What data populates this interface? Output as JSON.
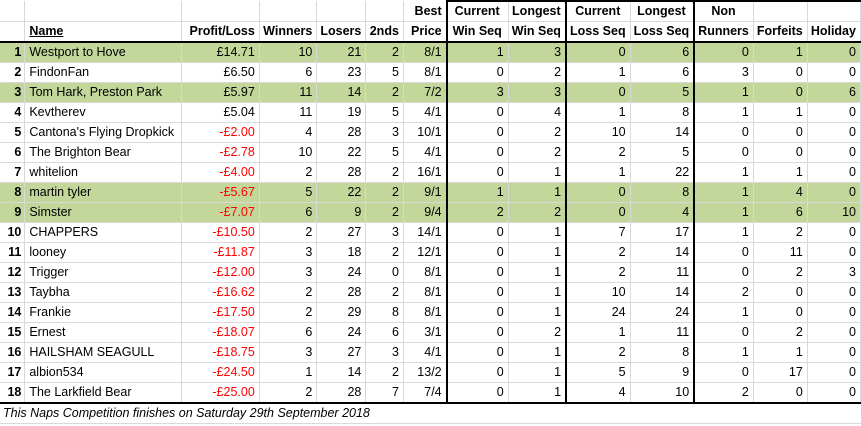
{
  "headers": {
    "name": "Name",
    "profit": "Profit/Loss",
    "winners": "Winners",
    "losers": "Losers",
    "seconds": "2nds",
    "best_price_top": "Best",
    "best_price_bottom": "Price",
    "cur_win_top": "Current",
    "cur_win_bottom": "Win Seq",
    "long_win_top": "Longest",
    "long_win_bottom": "Win Seq",
    "cur_loss_top": "Current",
    "cur_loss_bottom": "Loss Seq",
    "long_loss_top": "Longest",
    "long_loss_bottom": "Loss Seq",
    "non_runners_top": "Non",
    "non_runners_bottom": "Runners",
    "forfeits": "Forfeits",
    "holiday": "Holiday"
  },
  "colors": {
    "highlight": "#c4d79b",
    "negative": "#ff0000",
    "gridline": "#d9d9d9"
  },
  "rows": [
    {
      "rank": "1",
      "name": "Westport to Hove",
      "profit": "£14.71",
      "winners": "10",
      "losers": "21",
      "seconds": "2",
      "best_price": "8/1",
      "cur_win": "1",
      "long_win": "3",
      "cur_loss": "0",
      "long_loss": "6",
      "non_runners": "0",
      "forfeits": "1",
      "holiday": "0",
      "highlight": true,
      "negative": false
    },
    {
      "rank": "2",
      "name": "FindonFan",
      "profit": "£6.50",
      "winners": "6",
      "losers": "23",
      "seconds": "5",
      "best_price": "8/1",
      "cur_win": "0",
      "long_win": "2",
      "cur_loss": "1",
      "long_loss": "6",
      "non_runners": "3",
      "forfeits": "0",
      "holiday": "0",
      "highlight": false,
      "negative": false
    },
    {
      "rank": "3",
      "name": "Tom Hark, Preston Park",
      "profit": "£5.97",
      "winners": "11",
      "losers": "14",
      "seconds": "2",
      "best_price": "7/2",
      "cur_win": "3",
      "long_win": "3",
      "cur_loss": "0",
      "long_loss": "5",
      "non_runners": "1",
      "forfeits": "0",
      "holiday": "6",
      "highlight": true,
      "negative": false
    },
    {
      "rank": "4",
      "name": "Kevtherev",
      "profit": "£5.04",
      "winners": "11",
      "losers": "19",
      "seconds": "5",
      "best_price": "4/1",
      "cur_win": "0",
      "long_win": "4",
      "cur_loss": "1",
      "long_loss": "8",
      "non_runners": "1",
      "forfeits": "1",
      "holiday": "0",
      "highlight": false,
      "negative": false
    },
    {
      "rank": "5",
      "name": "Cantona's Flying Dropkick",
      "profit": "-£2.00",
      "winners": "4",
      "losers": "28",
      "seconds": "3",
      "best_price": "10/1",
      "cur_win": "0",
      "long_win": "2",
      "cur_loss": "10",
      "long_loss": "14",
      "non_runners": "0",
      "forfeits": "0",
      "holiday": "0",
      "highlight": false,
      "negative": true
    },
    {
      "rank": "6",
      "name": "The Brighton Bear",
      "profit": "-£2.78",
      "winners": "10",
      "losers": "22",
      "seconds": "5",
      "best_price": "4/1",
      "cur_win": "0",
      "long_win": "2",
      "cur_loss": "2",
      "long_loss": "5",
      "non_runners": "0",
      "forfeits": "0",
      "holiday": "0",
      "highlight": false,
      "negative": true
    },
    {
      "rank": "7",
      "name": "whitelion",
      "profit": "-£4.00",
      "winners": "2",
      "losers": "28",
      "seconds": "2",
      "best_price": "16/1",
      "cur_win": "0",
      "long_win": "1",
      "cur_loss": "1",
      "long_loss": "22",
      "non_runners": "1",
      "forfeits": "1",
      "holiday": "0",
      "highlight": false,
      "negative": true
    },
    {
      "rank": "8",
      "name": "martin tyler",
      "profit": "-£5.67",
      "winners": "5",
      "losers": "22",
      "seconds": "2",
      "best_price": "9/1",
      "cur_win": "1",
      "long_win": "1",
      "cur_loss": "0",
      "long_loss": "8",
      "non_runners": "1",
      "forfeits": "4",
      "holiday": "0",
      "highlight": true,
      "negative": true
    },
    {
      "rank": "9",
      "name": "Simster",
      "profit": "-£7.07",
      "winners": "6",
      "losers": "9",
      "seconds": "2",
      "best_price": "9/4",
      "cur_win": "2",
      "long_win": "2",
      "cur_loss": "0",
      "long_loss": "4",
      "non_runners": "1",
      "forfeits": "6",
      "holiday": "10",
      "highlight": true,
      "negative": true
    },
    {
      "rank": "10",
      "name": "CHAPPERS",
      "profit": "-£10.50",
      "winners": "2",
      "losers": "27",
      "seconds": "3",
      "best_price": "14/1",
      "cur_win": "0",
      "long_win": "1",
      "cur_loss": "7",
      "long_loss": "17",
      "non_runners": "1",
      "forfeits": "2",
      "holiday": "0",
      "highlight": false,
      "negative": true
    },
    {
      "rank": "11",
      "name": "looney",
      "profit": "-£11.87",
      "winners": "3",
      "losers": "18",
      "seconds": "2",
      "best_price": "12/1",
      "cur_win": "0",
      "long_win": "1",
      "cur_loss": "2",
      "long_loss": "14",
      "non_runners": "0",
      "forfeits": "11",
      "holiday": "0",
      "highlight": false,
      "negative": true
    },
    {
      "rank": "12",
      "name": "Trigger",
      "profit": "-£12.00",
      "winners": "3",
      "losers": "24",
      "seconds": "0",
      "best_price": "8/1",
      "cur_win": "0",
      "long_win": "1",
      "cur_loss": "2",
      "long_loss": "11",
      "non_runners": "0",
      "forfeits": "2",
      "holiday": "3",
      "highlight": false,
      "negative": true
    },
    {
      "rank": "13",
      "name": "Taybha",
      "profit": "-£16.62",
      "winners": "2",
      "losers": "28",
      "seconds": "2",
      "best_price": "8/1",
      "cur_win": "0",
      "long_win": "1",
      "cur_loss": "10",
      "long_loss": "14",
      "non_runners": "2",
      "forfeits": "0",
      "holiday": "0",
      "highlight": false,
      "negative": true
    },
    {
      "rank": "14",
      "name": "Frankie",
      "profit": "-£17.50",
      "winners": "2",
      "losers": "29",
      "seconds": "8",
      "best_price": "8/1",
      "cur_win": "0",
      "long_win": "1",
      "cur_loss": "24",
      "long_loss": "24",
      "non_runners": "1",
      "forfeits": "0",
      "holiday": "0",
      "highlight": false,
      "negative": true
    },
    {
      "rank": "15",
      "name": "Ernest",
      "profit": "-£18.07",
      "winners": "6",
      "losers": "24",
      "seconds": "6",
      "best_price": "3/1",
      "cur_win": "0",
      "long_win": "2",
      "cur_loss": "1",
      "long_loss": "11",
      "non_runners": "0",
      "forfeits": "2",
      "holiday": "0",
      "highlight": false,
      "negative": true
    },
    {
      "rank": "16",
      "name": "HAILSHAM SEAGULL",
      "profit": "-£18.75",
      "winners": "3",
      "losers": "27",
      "seconds": "3",
      "best_price": "4/1",
      "cur_win": "0",
      "long_win": "1",
      "cur_loss": "2",
      "long_loss": "8",
      "non_runners": "1",
      "forfeits": "1",
      "holiday": "0",
      "highlight": false,
      "negative": true
    },
    {
      "rank": "17",
      "name": "albion534",
      "profit": "-£24.50",
      "winners": "1",
      "losers": "14",
      "seconds": "2",
      "best_price": "13/2",
      "cur_win": "0",
      "long_win": "1",
      "cur_loss": "5",
      "long_loss": "9",
      "non_runners": "0",
      "forfeits": "17",
      "holiday": "0",
      "highlight": false,
      "negative": true
    },
    {
      "rank": "18",
      "name": "The Larkfield Bear",
      "profit": "-£25.00",
      "winners": "2",
      "losers": "28",
      "seconds": "7",
      "best_price": "7/4",
      "cur_win": "0",
      "long_win": "1",
      "cur_loss": "4",
      "long_loss": "10",
      "non_runners": "2",
      "forfeits": "0",
      "holiday": "0",
      "highlight": false,
      "negative": true
    }
  ],
  "footer": "This Naps Competition finishes on Saturday 29th September 2018"
}
